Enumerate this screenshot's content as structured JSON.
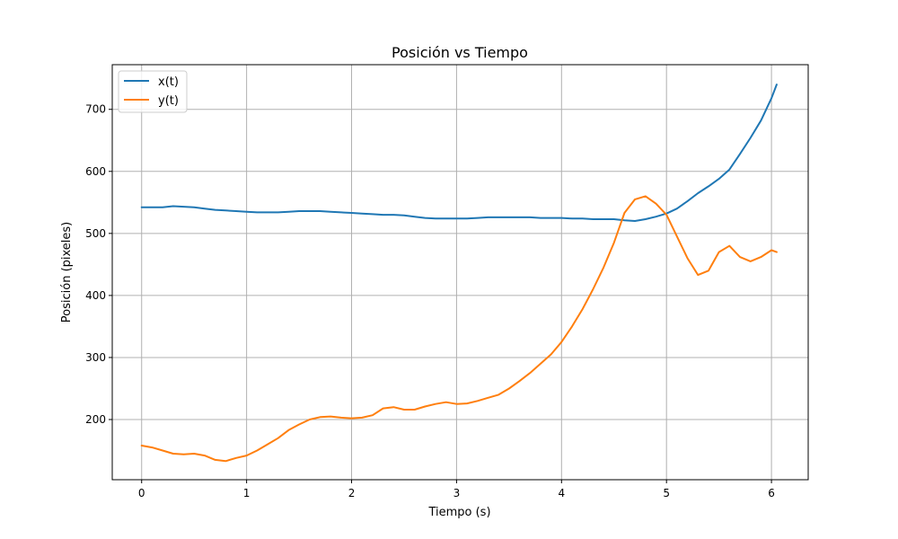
{
  "chart_data": {
    "type": "line",
    "title": "Posición vs Tiempo",
    "xlabel": "Tiempo (s)",
    "ylabel": "Posición (pixeles)",
    "xlim": [
      -0.28,
      6.35
    ],
    "ylim": [
      103,
      772
    ],
    "xticks": [
      0,
      1,
      2,
      3,
      4,
      5,
      6
    ],
    "yticks": [
      200,
      300,
      400,
      500,
      600,
      700
    ],
    "grid": true,
    "legend_position": "upper-left",
    "series": [
      {
        "name": "x(t)",
        "color": "#1f77b4",
        "x": [
          0,
          0.1,
          0.2,
          0.3,
          0.4,
          0.5,
          0.6,
          0.7,
          0.8,
          0.9,
          1.0,
          1.1,
          1.2,
          1.3,
          1.4,
          1.5,
          1.6,
          1.7,
          1.8,
          1.9,
          2.0,
          2.1,
          2.2,
          2.3,
          2.4,
          2.5,
          2.6,
          2.7,
          2.8,
          2.9,
          3.0,
          3.1,
          3.2,
          3.3,
          3.4,
          3.5,
          3.6,
          3.7,
          3.8,
          3.9,
          4.0,
          4.1,
          4.2,
          4.3,
          4.4,
          4.5,
          4.6,
          4.7,
          4.8,
          4.9,
          5.0,
          5.1,
          5.2,
          5.3,
          5.4,
          5.5,
          5.6,
          5.7,
          5.8,
          5.9,
          6.0,
          6.05
        ],
        "y": [
          542,
          542,
          542,
          544,
          543,
          542,
          540,
          538,
          537,
          536,
          535,
          534,
          534,
          534,
          535,
          536,
          536,
          536,
          535,
          534,
          533,
          532,
          531,
          530,
          530,
          529,
          527,
          525,
          524,
          524,
          524,
          524,
          525,
          526,
          526,
          526,
          526,
          526,
          525,
          525,
          525,
          524,
          524,
          523,
          523,
          523,
          521,
          520,
          523,
          527,
          532,
          540,
          552,
          565,
          576,
          588,
          603,
          628,
          654,
          682,
          718,
          740
        ]
      },
      {
        "name": "y(t)",
        "color": "#ff7f0e",
        "x": [
          0,
          0.1,
          0.2,
          0.3,
          0.4,
          0.5,
          0.6,
          0.7,
          0.8,
          0.9,
          1.0,
          1.1,
          1.2,
          1.3,
          1.4,
          1.5,
          1.6,
          1.7,
          1.8,
          1.9,
          2.0,
          2.1,
          2.2,
          2.3,
          2.4,
          2.5,
          2.6,
          2.7,
          2.8,
          2.9,
          3.0,
          3.1,
          3.2,
          3.3,
          3.4,
          3.5,
          3.6,
          3.7,
          3.8,
          3.9,
          4.0,
          4.1,
          4.2,
          4.3,
          4.4,
          4.5,
          4.6,
          4.7,
          4.8,
          4.9,
          5.0,
          5.1,
          5.2,
          5.3,
          5.4,
          5.5,
          5.6,
          5.7,
          5.8,
          5.9,
          6.0,
          6.05
        ],
        "y": [
          158,
          155,
          150,
          145,
          144,
          145,
          142,
          135,
          133,
          138,
          142,
          150,
          160,
          170,
          183,
          192,
          200,
          204,
          205,
          203,
          202,
          203,
          207,
          218,
          220,
          216,
          216,
          221,
          225,
          228,
          225,
          226,
          230,
          235,
          240,
          250,
          262,
          275,
          290,
          305,
          325,
          350,
          378,
          410,
          445,
          485,
          533,
          555,
          560,
          548,
          530,
          495,
          460,
          433,
          440,
          470,
          480,
          462,
          455,
          462,
          473,
          470
        ]
      }
    ]
  }
}
